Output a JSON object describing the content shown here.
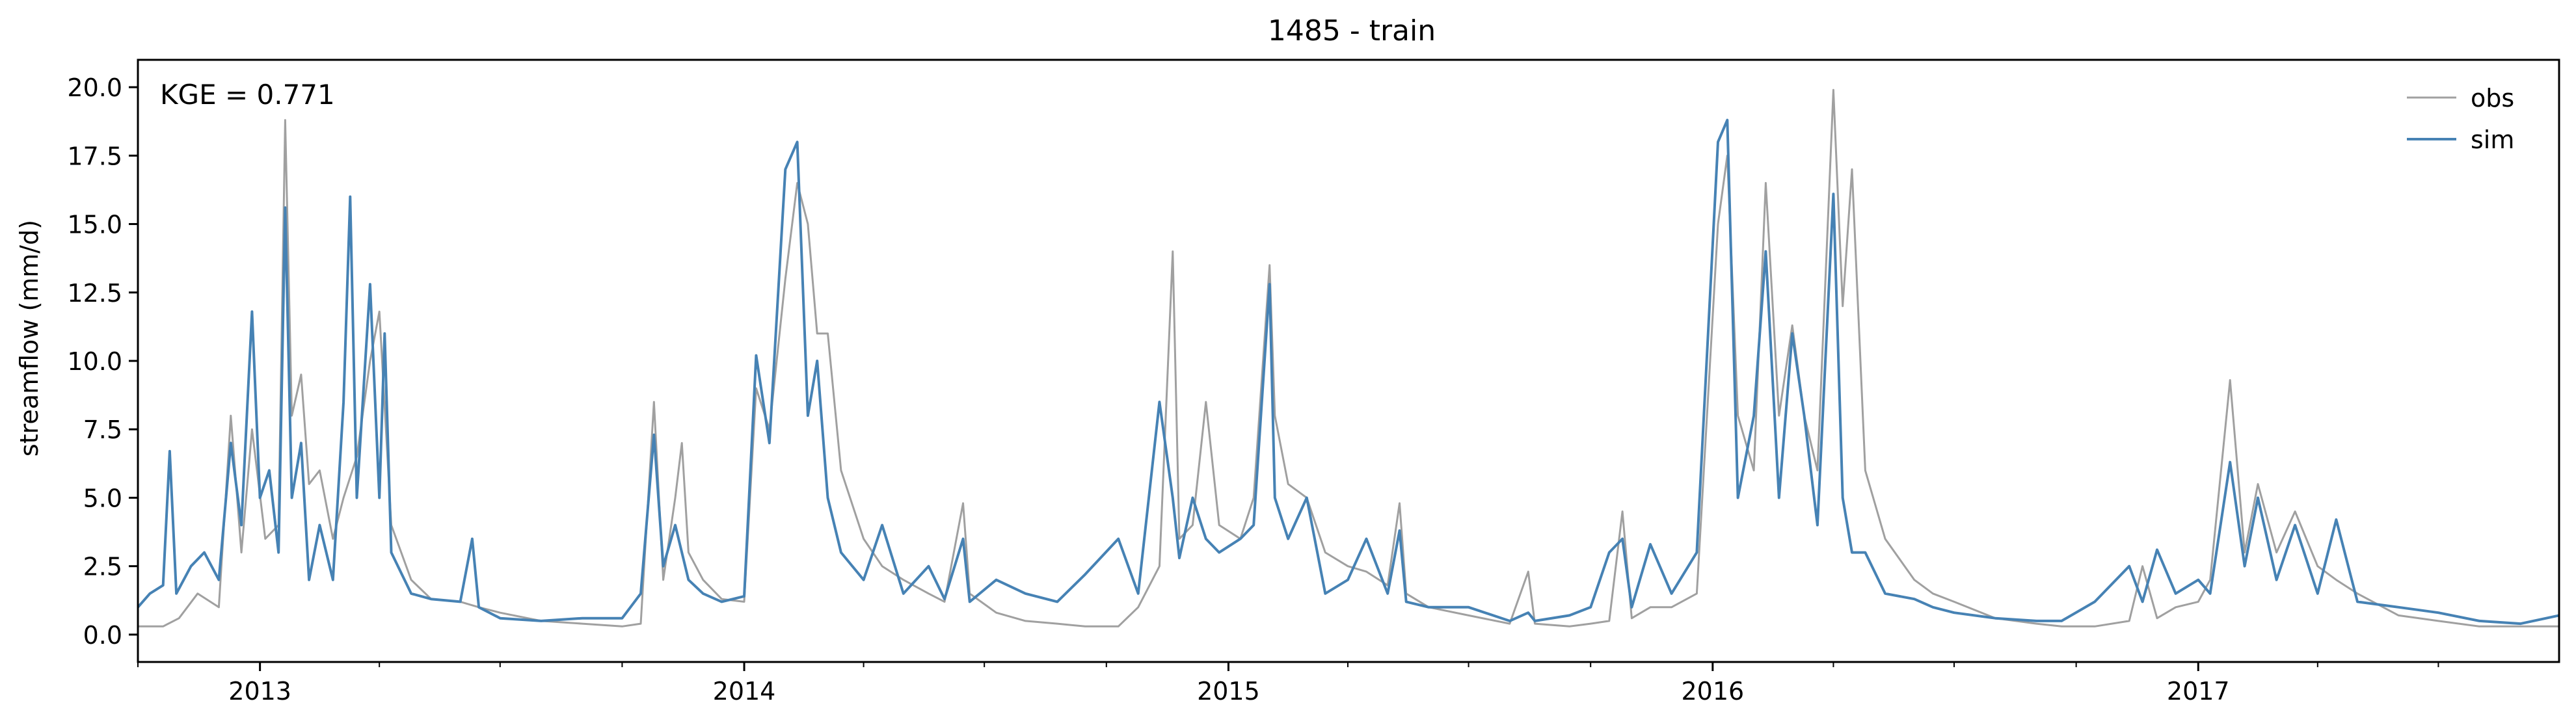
{
  "chart_data": {
    "type": "line",
    "title": "1485 - train",
    "xlabel": "",
    "ylabel": "streamflow (mm/d)",
    "annotation": "KGE = 0.771",
    "xlim": [
      "2012-10-01",
      "2017-09-30"
    ],
    "ylim": [
      -1.0,
      21.0
    ],
    "y_ticks": [
      0.0,
      2.5,
      5.0,
      7.5,
      10.0,
      12.5,
      15.0,
      17.5,
      20.0
    ],
    "y_tick_labels": [
      "0.0",
      "2.5",
      "5.0",
      "7.5",
      "10.0",
      "12.5",
      "15.0",
      "17.5",
      "20.0"
    ],
    "x_ticks": [
      "2013-01-01",
      "2014-01-01",
      "2015-01-01",
      "2016-01-01",
      "2017-01-01"
    ],
    "x_tick_labels": [
      "2013",
      "2014",
      "2015",
      "2016",
      "2017"
    ],
    "grid": false,
    "legend_position": "top-right",
    "series": [
      {
        "name": "obs",
        "color": "#a0a0a0",
        "points": [
          [
            "2012-10-01",
            0.3
          ],
          [
            "2012-10-20",
            0.3
          ],
          [
            "2012-11-01",
            0.6
          ],
          [
            "2012-11-15",
            1.5
          ],
          [
            "2012-12-01",
            1.0
          ],
          [
            "2012-12-10",
            8.0
          ],
          [
            "2012-12-18",
            3.0
          ],
          [
            "2012-12-26",
            7.5
          ],
          [
            "2013-01-05",
            3.5
          ],
          [
            "2013-01-15",
            4.0
          ],
          [
            "2013-01-20",
            18.8
          ],
          [
            "2013-01-25",
            8.0
          ],
          [
            "2013-02-01",
            9.5
          ],
          [
            "2013-02-07",
            5.5
          ],
          [
            "2013-02-15",
            6.0
          ],
          [
            "2013-02-25",
            3.5
          ],
          [
            "2013-03-05",
            5.0
          ],
          [
            "2013-03-15",
            6.5
          ],
          [
            "2013-03-25",
            10.0
          ],
          [
            "2013-04-01",
            11.8
          ],
          [
            "2013-04-10",
            4.0
          ],
          [
            "2013-04-25",
            2.0
          ],
          [
            "2013-05-10",
            1.3
          ],
          [
            "2013-06-01",
            1.2
          ],
          [
            "2013-06-15",
            1.0
          ],
          [
            "2013-07-01",
            0.8
          ],
          [
            "2013-08-01",
            0.5
          ],
          [
            "2013-09-01",
            0.4
          ],
          [
            "2013-10-01",
            0.3
          ],
          [
            "2013-10-15",
            0.4
          ],
          [
            "2013-10-25",
            8.5
          ],
          [
            "2013-11-01",
            2.0
          ],
          [
            "2013-11-10",
            5.0
          ],
          [
            "2013-11-15",
            7.0
          ],
          [
            "2013-11-20",
            3.0
          ],
          [
            "2013-12-01",
            2.0
          ],
          [
            "2013-12-15",
            1.3
          ],
          [
            "2014-01-01",
            1.2
          ],
          [
            "2014-01-10",
            9.0
          ],
          [
            "2014-01-20",
            7.5
          ],
          [
            "2014-02-01",
            13.0
          ],
          [
            "2014-02-10",
            16.5
          ],
          [
            "2014-02-18",
            15.0
          ],
          [
            "2014-02-25",
            11.0
          ],
          [
            "2014-03-05",
            11.0
          ],
          [
            "2014-03-15",
            6.0
          ],
          [
            "2014-04-01",
            3.5
          ],
          [
            "2014-04-15",
            2.5
          ],
          [
            "2014-05-01",
            2.0
          ],
          [
            "2014-05-20",
            1.5
          ],
          [
            "2014-06-01",
            1.2
          ],
          [
            "2014-06-15",
            4.8
          ],
          [
            "2014-06-20",
            1.5
          ],
          [
            "2014-07-10",
            0.8
          ],
          [
            "2014-08-01",
            0.5
          ],
          [
            "2014-08-25",
            0.4
          ],
          [
            "2014-09-15",
            0.3
          ],
          [
            "2014-10-10",
            0.3
          ],
          [
            "2014-10-25",
            1.0
          ],
          [
            "2014-11-10",
            2.5
          ],
          [
            "2014-11-20",
            14.0
          ],
          [
            "2014-11-25",
            3.5
          ],
          [
            "2014-12-05",
            4.0
          ],
          [
            "2014-12-15",
            8.5
          ],
          [
            "2014-12-25",
            4.0
          ],
          [
            "2015-01-10",
            3.5
          ],
          [
            "2015-01-20",
            5.0
          ],
          [
            "2015-02-01",
            13.5
          ],
          [
            "2015-02-05",
            8.0
          ],
          [
            "2015-02-15",
            5.5
          ],
          [
            "2015-03-01",
            5.0
          ],
          [
            "2015-03-15",
            3.0
          ],
          [
            "2015-04-01",
            2.5
          ],
          [
            "2015-04-15",
            2.3
          ],
          [
            "2015-05-01",
            1.8
          ],
          [
            "2015-05-10",
            4.8
          ],
          [
            "2015-05-15",
            1.5
          ],
          [
            "2015-06-01",
            1.0
          ],
          [
            "2015-07-01",
            0.7
          ],
          [
            "2015-08-01",
            0.4
          ],
          [
            "2015-08-15",
            2.3
          ],
          [
            "2015-08-20",
            0.4
          ],
          [
            "2015-09-15",
            0.3
          ],
          [
            "2015-10-01",
            0.4
          ],
          [
            "2015-10-15",
            0.5
          ],
          [
            "2015-10-25",
            4.5
          ],
          [
            "2015-11-01",
            0.6
          ],
          [
            "2015-11-15",
            1.0
          ],
          [
            "2015-12-01",
            1.0
          ],
          [
            "2015-12-20",
            1.5
          ],
          [
            "2016-01-05",
            15.0
          ],
          [
            "2016-01-12",
            17.5
          ],
          [
            "2016-01-20",
            8.0
          ],
          [
            "2016-02-01",
            6.0
          ],
          [
            "2016-02-10",
            16.5
          ],
          [
            "2016-02-20",
            8.0
          ],
          [
            "2016-03-01",
            11.3
          ],
          [
            "2016-03-10",
            8.0
          ],
          [
            "2016-03-20",
            6.0
          ],
          [
            "2016-04-01",
            19.9
          ],
          [
            "2016-04-08",
            12.0
          ],
          [
            "2016-04-15",
            17.0
          ],
          [
            "2016-04-25",
            6.0
          ],
          [
            "2016-05-10",
            3.5
          ],
          [
            "2016-06-01",
            2.0
          ],
          [
            "2016-06-15",
            1.5
          ],
          [
            "2016-07-01",
            1.2
          ],
          [
            "2016-08-01",
            0.6
          ],
          [
            "2016-09-01",
            0.4
          ],
          [
            "2016-09-20",
            0.3
          ],
          [
            "2016-10-15",
            0.3
          ],
          [
            "2016-11-10",
            0.5
          ],
          [
            "2016-11-20",
            2.5
          ],
          [
            "2016-12-01",
            0.6
          ],
          [
            "2016-12-15",
            1.0
          ],
          [
            "2017-01-01",
            1.2
          ],
          [
            "2017-01-10",
            2.0
          ],
          [
            "2017-01-25",
            9.3
          ],
          [
            "2017-02-05",
            3.0
          ],
          [
            "2017-02-15",
            5.5
          ],
          [
            "2017-03-01",
            3.0
          ],
          [
            "2017-03-15",
            4.5
          ],
          [
            "2017-04-01",
            2.5
          ],
          [
            "2017-04-15",
            2.0
          ],
          [
            "2017-05-01",
            1.5
          ],
          [
            "2017-06-01",
            0.7
          ],
          [
            "2017-07-01",
            0.5
          ],
          [
            "2017-08-01",
            0.3
          ],
          [
            "2017-09-01",
            0.3
          ],
          [
            "2017-09-30",
            0.3
          ]
        ]
      },
      {
        "name": "sim",
        "color": "#4682b4",
        "points": [
          [
            "2012-10-01",
            1.0
          ],
          [
            "2012-10-10",
            1.5
          ],
          [
            "2012-10-20",
            1.8
          ],
          [
            "2012-10-25",
            6.7
          ],
          [
            "2012-10-30",
            1.5
          ],
          [
            "2012-11-10",
            2.5
          ],
          [
            "2012-11-20",
            3.0
          ],
          [
            "2012-12-01",
            2.0
          ],
          [
            "2012-12-10",
            7.0
          ],
          [
            "2012-12-18",
            4.0
          ],
          [
            "2012-12-26",
            11.8
          ],
          [
            "2013-01-01",
            5.0
          ],
          [
            "2013-01-08",
            6.0
          ],
          [
            "2013-01-15",
            3.0
          ],
          [
            "2013-01-20",
            15.6
          ],
          [
            "2013-01-25",
            5.0
          ],
          [
            "2013-02-01",
            7.0
          ],
          [
            "2013-02-07",
            2.0
          ],
          [
            "2013-02-15",
            4.0
          ],
          [
            "2013-02-25",
            2.0
          ],
          [
            "2013-03-05",
            8.5
          ],
          [
            "2013-03-10",
            16.0
          ],
          [
            "2013-03-15",
            5.0
          ],
          [
            "2013-03-25",
            12.8
          ],
          [
            "2013-04-01",
            5.0
          ],
          [
            "2013-04-05",
            11.0
          ],
          [
            "2013-04-10",
            3.0
          ],
          [
            "2013-04-25",
            1.5
          ],
          [
            "2013-05-10",
            1.3
          ],
          [
            "2013-06-01",
            1.2
          ],
          [
            "2013-06-10",
            3.5
          ],
          [
            "2013-06-15",
            1.0
          ],
          [
            "2013-07-01",
            0.6
          ],
          [
            "2013-08-01",
            0.5
          ],
          [
            "2013-09-01",
            0.6
          ],
          [
            "2013-10-01",
            0.6
          ],
          [
            "2013-10-15",
            1.5
          ],
          [
            "2013-10-25",
            7.3
          ],
          [
            "2013-11-01",
            2.5
          ],
          [
            "2013-11-10",
            4.0
          ],
          [
            "2013-11-20",
            2.0
          ],
          [
            "2013-12-01",
            1.5
          ],
          [
            "2013-12-15",
            1.2
          ],
          [
            "2014-01-01",
            1.4
          ],
          [
            "2014-01-10",
            10.2
          ],
          [
            "2014-01-20",
            7.0
          ],
          [
            "2014-02-01",
            17.0
          ],
          [
            "2014-02-10",
            18.0
          ],
          [
            "2014-02-18",
            8.0
          ],
          [
            "2014-02-25",
            10.0
          ],
          [
            "2014-03-05",
            5.0
          ],
          [
            "2014-03-15",
            3.0
          ],
          [
            "2014-04-01",
            2.0
          ],
          [
            "2014-04-15",
            4.0
          ],
          [
            "2014-05-01",
            1.5
          ],
          [
            "2014-05-20",
            2.5
          ],
          [
            "2014-06-01",
            1.3
          ],
          [
            "2014-06-15",
            3.5
          ],
          [
            "2014-06-20",
            1.2
          ],
          [
            "2014-07-10",
            2.0
          ],
          [
            "2014-08-01",
            1.5
          ],
          [
            "2014-08-25",
            1.2
          ],
          [
            "2014-09-15",
            2.2
          ],
          [
            "2014-10-10",
            3.5
          ],
          [
            "2014-10-25",
            1.5
          ],
          [
            "2014-11-10",
            8.5
          ],
          [
            "2014-11-20",
            5.0
          ],
          [
            "2014-11-25",
            2.8
          ],
          [
            "2014-12-05",
            5.0
          ],
          [
            "2014-12-15",
            3.5
          ],
          [
            "2014-12-25",
            3.0
          ],
          [
            "2015-01-10",
            3.5
          ],
          [
            "2015-01-20",
            4.0
          ],
          [
            "2015-02-01",
            12.8
          ],
          [
            "2015-02-05",
            5.0
          ],
          [
            "2015-02-15",
            3.5
          ],
          [
            "2015-03-01",
            5.0
          ],
          [
            "2015-03-15",
            1.5
          ],
          [
            "2015-04-01",
            2.0
          ],
          [
            "2015-04-15",
            3.5
          ],
          [
            "2015-05-01",
            1.5
          ],
          [
            "2015-05-10",
            3.8
          ],
          [
            "2015-05-15",
            1.2
          ],
          [
            "2015-06-01",
            1.0
          ],
          [
            "2015-07-01",
            1.0
          ],
          [
            "2015-08-01",
            0.5
          ],
          [
            "2015-08-15",
            0.8
          ],
          [
            "2015-08-20",
            0.5
          ],
          [
            "2015-09-15",
            0.7
          ],
          [
            "2015-10-01",
            1.0
          ],
          [
            "2015-10-15",
            3.0
          ],
          [
            "2015-10-25",
            3.5
          ],
          [
            "2015-11-01",
            1.0
          ],
          [
            "2015-11-15",
            3.3
          ],
          [
            "2015-12-01",
            1.5
          ],
          [
            "2015-12-20",
            3.0
          ],
          [
            "2016-01-05",
            18.0
          ],
          [
            "2016-01-12",
            18.8
          ],
          [
            "2016-01-20",
            5.0
          ],
          [
            "2016-02-01",
            8.0
          ],
          [
            "2016-02-10",
            14.0
          ],
          [
            "2016-02-20",
            5.0
          ],
          [
            "2016-03-01",
            11.0
          ],
          [
            "2016-03-10",
            8.0
          ],
          [
            "2016-03-20",
            4.0
          ],
          [
            "2016-04-01",
            16.1
          ],
          [
            "2016-04-08",
            5.0
          ],
          [
            "2016-04-15",
            3.0
          ],
          [
            "2016-04-25",
            3.0
          ],
          [
            "2016-05-10",
            1.5
          ],
          [
            "2016-06-01",
            1.3
          ],
          [
            "2016-06-15",
            1.0
          ],
          [
            "2016-07-01",
            0.8
          ],
          [
            "2016-08-01",
            0.6
          ],
          [
            "2016-09-01",
            0.5
          ],
          [
            "2016-09-20",
            0.5
          ],
          [
            "2016-10-15",
            1.2
          ],
          [
            "2016-11-10",
            2.5
          ],
          [
            "2016-11-20",
            1.2
          ],
          [
            "2016-12-01",
            3.1
          ],
          [
            "2016-12-15",
            1.5
          ],
          [
            "2017-01-01",
            2.0
          ],
          [
            "2017-01-10",
            1.5
          ],
          [
            "2017-01-25",
            6.3
          ],
          [
            "2017-02-05",
            2.5
          ],
          [
            "2017-02-15",
            5.0
          ],
          [
            "2017-03-01",
            2.0
          ],
          [
            "2017-03-15",
            4.0
          ],
          [
            "2017-04-01",
            1.5
          ],
          [
            "2017-04-15",
            4.2
          ],
          [
            "2017-05-01",
            1.2
          ],
          [
            "2017-06-01",
            1.0
          ],
          [
            "2017-07-01",
            0.8
          ],
          [
            "2017-08-01",
            0.5
          ],
          [
            "2017-09-01",
            0.4
          ],
          [
            "2017-09-30",
            0.7
          ]
        ]
      }
    ]
  }
}
